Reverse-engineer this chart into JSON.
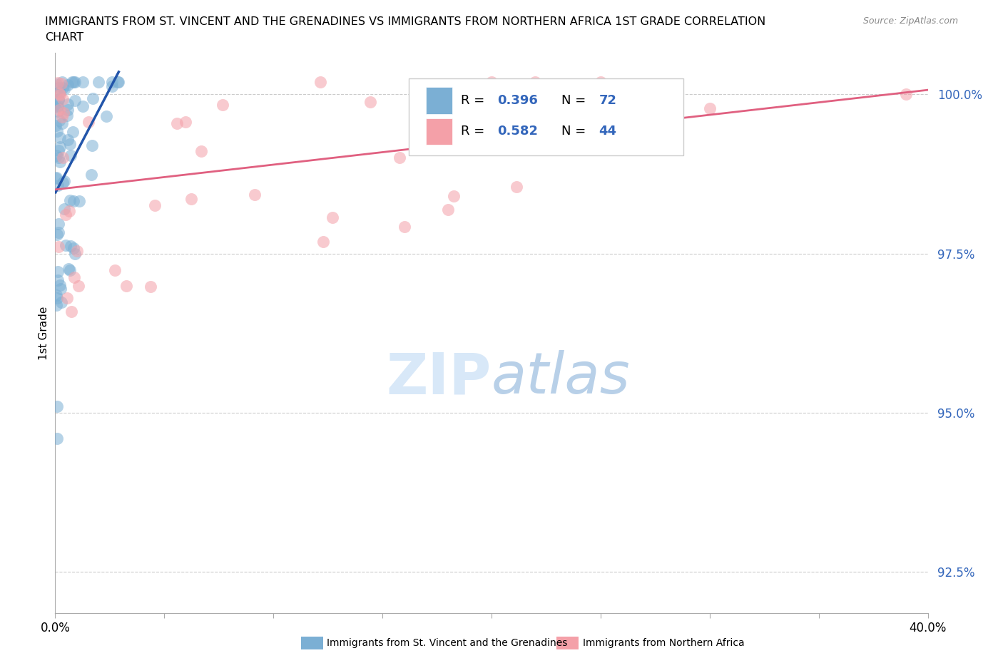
{
  "title_line1": "IMMIGRANTS FROM ST. VINCENT AND THE GRENADINES VS IMMIGRANTS FROM NORTHERN AFRICA 1ST GRADE CORRELATION",
  "title_line2": "CHART",
  "source_text": "Source: ZipAtlas.com",
  "ylabel": "1st Grade",
  "xlim": [
    0.0,
    0.4
  ],
  "ylim": [
    0.9185,
    1.0065
  ],
  "yticks": [
    0.925,
    0.95,
    0.975,
    1.0
  ],
  "ytick_labels": [
    "92.5%",
    "95.0%",
    "97.5%",
    "100.0%"
  ],
  "xtick_positions": [
    0.0,
    0.05,
    0.1,
    0.15,
    0.2,
    0.25,
    0.3,
    0.35,
    0.4
  ],
  "blue_R": 0.396,
  "blue_N": 72,
  "pink_R": 0.582,
  "pink_N": 44,
  "blue_color": "#7BAFD4",
  "pink_color": "#F4A0A8",
  "blue_line_color": "#2255AA",
  "pink_line_color": "#E06080",
  "blue_label": "Immigrants from St. Vincent and the Grenadines",
  "pink_label": "Immigrants from Northern Africa",
  "background_color": "#FFFFFF",
  "grid_color": "#CCCCCC",
  "watermark_color": "#D8E8F8"
}
